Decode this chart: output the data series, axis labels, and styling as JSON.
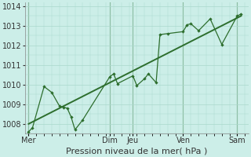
{
  "xlabel": "Pression niveau de la mer( hPa )",
  "bg_color": "#cceee8",
  "plot_bg_color": "#cceee8",
  "grid_color": "#aad8cc",
  "line_color": "#2d6e2d",
  "ylim": [
    1007.5,
    1014.2
  ],
  "yticks": [
    1008,
    1009,
    1010,
    1011,
    1012,
    1013,
    1014
  ],
  "day_labels": [
    "Mer",
    "Dim",
    "Jeu",
    "Ven",
    "Sam"
  ],
  "day_positions": [
    0.0,
    10.5,
    13.5,
    20.0,
    27.0
  ],
  "xlim": [
    -0.5,
    28.5
  ],
  "forecast_x": [
    0,
    0.5,
    2,
    3,
    4,
    4.5,
    5,
    5.5,
    6,
    7,
    10.5,
    11,
    11.5,
    13.5,
    14,
    15,
    15.5,
    16.5,
    17,
    18,
    20,
    20.5,
    21,
    22,
    23.5,
    25,
    27,
    27.5
  ],
  "forecast_y": [
    1007.6,
    1007.8,
    1009.9,
    1009.6,
    1008.9,
    1008.85,
    1008.8,
    1008.35,
    1007.7,
    1008.2,
    1010.4,
    1010.55,
    1010.05,
    1010.45,
    1009.95,
    1010.3,
    1010.55,
    1010.1,
    1012.55,
    1012.6,
    1012.7,
    1013.05,
    1013.1,
    1012.75,
    1013.35,
    1012.05,
    1013.5,
    1013.6
  ],
  "trend_x": [
    0,
    27.5
  ],
  "trend_y": [
    1008.0,
    1013.5
  ],
  "vline_positions": [
    0.0,
    10.5,
    13.5,
    20.0,
    27.0
  ],
  "xlabel_fontsize": 8,
  "ytick_fontsize": 7,
  "xtick_fontsize": 7
}
